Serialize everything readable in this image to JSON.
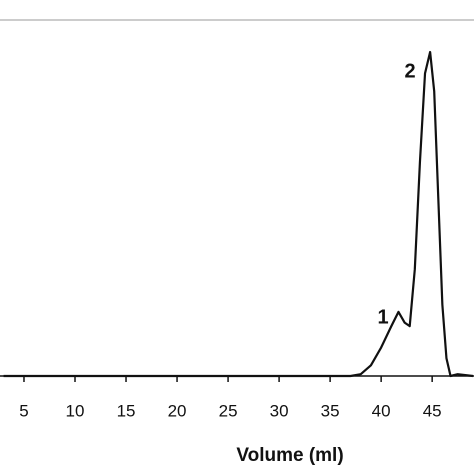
{
  "chart_data": {
    "type": "line",
    "x_label": "Volume (ml)",
    "x": [
      3,
      10,
      20,
      30,
      37,
      38,
      39,
      40,
      41,
      41.7,
      42.3,
      42.8,
      43.3,
      43.8,
      44.3,
      44.8,
      45.2,
      45.6,
      46,
      46.4,
      46.8,
      47.5,
      49
    ],
    "series": [
      {
        "color": "#111111",
        "values": [
          0,
          0,
          0,
          0,
          0,
          0.5,
          3,
          8,
          14,
          18,
          15,
          14,
          30,
          60,
          85,
          91,
          80,
          50,
          20,
          5,
          0,
          0.5,
          0
        ]
      }
    ],
    "annotations": [
      "1",
      "2"
    ],
    "xlim": [
      2.65,
      49.1
    ],
    "xticks": [
      5,
      10,
      15,
      20,
      25,
      30,
      35,
      40,
      45
    ],
    "ylim": [
      0,
      100
    ]
  }
}
